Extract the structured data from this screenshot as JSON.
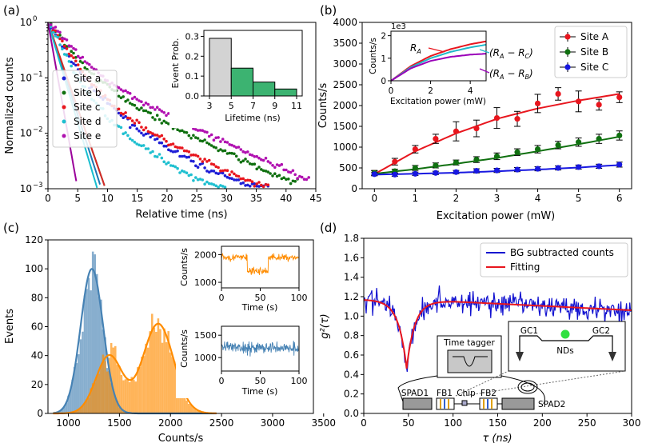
{
  "panel_labels": [
    "(a)",
    "(b)",
    "(c)",
    "(d)"
  ],
  "chart_data": [
    {
      "id": "a",
      "type": "scatter",
      "xlabel": "Relative time (ns)",
      "ylabel": "Normalized counts",
      "xlim": [
        0,
        45
      ],
      "ylim": [
        0.001,
        1
      ],
      "yscale": "log",
      "x_ticks": [
        0,
        5,
        10,
        15,
        20,
        25,
        30,
        35,
        40,
        45
      ],
      "y_ticks": [
        0.001,
        0.01,
        0.1,
        1
      ],
      "y_tick_labels": [
        "10",
        "10",
        "10",
        "10"
      ],
      "y_tick_exponents": [
        "−3",
        "−2",
        "−1",
        "0"
      ],
      "legend_position": "center-left",
      "series": [
        {
          "name": "Site a",
          "color": "#1f1fd6",
          "data_end": 37,
          "points": [
            [
              0,
              1
            ],
            [
              2,
              0.45
            ],
            [
              4,
              0.2
            ],
            [
              6,
              0.1
            ],
            [
              8,
              0.055
            ],
            [
              10,
              0.035
            ],
            [
              15,
              0.012
            ],
            [
              20,
              0.0055
            ],
            [
              25,
              0.0028
            ],
            [
              30,
              0.0016
            ],
            [
              35,
              0.0011
            ]
          ],
          "fit_color": "#1f77b4",
          "fit_tau": 1.3
        },
        {
          "name": "Site b",
          "color": "#107010",
          "data_end": 42,
          "points": [
            [
              0,
              1
            ],
            [
              2,
              0.55
            ],
            [
              4,
              0.3
            ],
            [
              6,
              0.17
            ],
            [
              8,
              0.1
            ],
            [
              10,
              0.07
            ],
            [
              15,
              0.03
            ],
            [
              20,
              0.015
            ],
            [
              25,
              0.008
            ],
            [
              30,
              0.0045
            ],
            [
              35,
              0.0025
            ],
            [
              40,
              0.0014
            ]
          ],
          "fit_color": "#2ca02c",
          "fit_tau": 1.4
        },
        {
          "name": "Site c",
          "color": "#e8161e",
          "data_end": 37,
          "points": [
            [
              0,
              1
            ],
            [
              2,
              0.5
            ],
            [
              4,
              0.25
            ],
            [
              6,
              0.12
            ],
            [
              8,
              0.065
            ],
            [
              10,
              0.04
            ],
            [
              15,
              0.015
            ],
            [
              20,
              0.007
            ],
            [
              25,
              0.0037
            ],
            [
              30,
              0.002
            ],
            [
              35,
              0.0012
            ]
          ],
          "fit_color": "#d62728",
          "fit_tau": 1.4
        },
        {
          "name": "Site d",
          "color": "#20c0d0",
          "data_end": 30,
          "points": [
            [
              0,
              1
            ],
            [
              2,
              0.4
            ],
            [
              4,
              0.15
            ],
            [
              6,
              0.07
            ],
            [
              8,
              0.035
            ],
            [
              10,
              0.02
            ],
            [
              15,
              0.0065
            ],
            [
              20,
              0.003
            ],
            [
              25,
              0.0015
            ],
            [
              29,
              0.0011
            ]
          ],
          "fit_color": "#17becf",
          "fit_tau": 1.2
        },
        {
          "name": "Site e",
          "color": "#b010b0",
          "data_end": 44,
          "points": [
            [
              0,
              1
            ],
            [
              2,
              0.6
            ],
            [
              4,
              0.35
            ],
            [
              6,
              0.2
            ],
            [
              8,
              0.13
            ],
            [
              10,
              0.09
            ],
            [
              15,
              0.042
            ],
            [
              20,
              0.022
            ],
            [
              25,
              0.012
            ],
            [
              30,
              0.0068
            ],
            [
              35,
              0.0038
            ],
            [
              40,
              0.0022
            ],
            [
              44,
              0.0014
            ]
          ],
          "fit_color": "#9a009a",
          "fit_tau": 0.72
        }
      ],
      "inset": {
        "type": "bar",
        "xlabel": "Lifetime (ns)",
        "ylabel": "Event Prob.",
        "x_ticks": [
          3,
          5,
          7,
          9,
          11
        ],
        "y_ticks": [
          0,
          0.1,
          0.2,
          0.3
        ],
        "y_tick_labels": [
          "0.0",
          "0.1",
          "0.2",
          "0.3"
        ],
        "ylim": [
          0,
          0.33
        ],
        "bins": [
          [
            3,
            5
          ],
          [
            5,
            7
          ],
          [
            7,
            9
          ],
          [
            9,
            11
          ]
        ],
        "values": [
          0.29,
          0.14,
          0.07,
          0.035
        ],
        "colors": [
          "#d3d3d3",
          "#3cb371",
          "#3cb371",
          "#3cb371"
        ]
      }
    },
    {
      "id": "b",
      "type": "scatter",
      "xlabel": "Excitation power (mW)",
      "ylabel": "Counts/s",
      "xlim": [
        -0.3,
        6.3
      ],
      "ylim": [
        0,
        4000
      ],
      "x_ticks": [
        0,
        1,
        2,
        3,
        4,
        5,
        6
      ],
      "y_ticks": [
        0,
        500,
        1000,
        1500,
        2000,
        2500,
        3000,
        3500,
        4000
      ],
      "legend_position": "upper-right",
      "series": [
        {
          "name": "Site A",
          "color": "#e8161e",
          "x": [
            0,
            0.5,
            1,
            1.5,
            2,
            2.5,
            3,
            3.5,
            4,
            4.5,
            5,
            5.5,
            6
          ],
          "y": [
            380,
            650,
            950,
            1200,
            1380,
            1450,
            1700,
            1680,
            2050,
            2280,
            2100,
            2020,
            2200
          ],
          "err": [
            60,
            80,
            90,
            110,
            230,
            200,
            250,
            180,
            220,
            150,
            250,
            130,
            130
          ],
          "fit": [
            [
              0,
              350
            ],
            [
              1,
              900
            ],
            [
              2,
              1330
            ],
            [
              3,
              1680
            ],
            [
              4,
              1930
            ],
            [
              5,
              2120
            ],
            [
              6,
              2280
            ]
          ]
        },
        {
          "name": "Site B",
          "color": "#107010",
          "x": [
            0,
            0.5,
            1,
            1.5,
            2,
            2.5,
            3,
            3.5,
            4,
            4.5,
            5,
            5.5,
            6
          ],
          "y": [
            380,
            420,
            500,
            560,
            630,
            700,
            780,
            880,
            950,
            1050,
            1120,
            1200,
            1280
          ],
          "err": [
            50,
            50,
            60,
            60,
            60,
            70,
            80,
            80,
            90,
            90,
            100,
            110,
            110
          ],
          "fit": [
            [
              0,
              360
            ],
            [
              1,
              470
            ],
            [
              2,
              600
            ],
            [
              3,
              740
            ],
            [
              4,
              900
            ],
            [
              5,
              1070
            ],
            [
              6,
              1250
            ]
          ]
        },
        {
          "name": "Site C",
          "color": "#1818e0",
          "x": [
            0,
            0.5,
            1,
            1.5,
            2,
            2.5,
            3,
            3.5,
            4,
            4.5,
            5,
            5.5,
            6
          ],
          "y": [
            350,
            340,
            360,
            380,
            400,
            430,
            440,
            460,
            480,
            500,
            520,
            540,
            580
          ],
          "err": [
            40,
            40,
            40,
            40,
            40,
            50,
            50,
            50,
            50,
            50,
            50,
            50,
            60
          ],
          "fit": [
            [
              0,
              340
            ],
            [
              1,
              360
            ],
            [
              2,
              385
            ],
            [
              3,
              420
            ],
            [
              4,
              460
            ],
            [
              5,
              510
            ],
            [
              6,
              570
            ]
          ]
        }
      ],
      "inset": {
        "type": "line",
        "xlabel": "Excitation power (mW)",
        "ylabel": "Counts/s",
        "y_multiplier": "1e3",
        "x_ticks": [
          0,
          2,
          4
        ],
        "y_ticks": [
          0,
          1,
          2
        ],
        "xlim": [
          0,
          4.8
        ],
        "ylim": [
          0,
          2.2
        ],
        "labels": [
          "R",
          "(R",
          "(R"
        ],
        "label_subscripts": [
          "A",
          "A",
          "A"
        ],
        "label_suffixes": [
          "",
          " − R",
          " − R"
        ],
        "label_suffix_subscripts": [
          "",
          "C",
          "B"
        ],
        "label_closers": [
          "",
          ")",
          ")"
        ],
        "lines": [
          {
            "label_index": 0,
            "color": "#e8161e",
            "points": [
              [
                0,
                0
              ],
              [
                1,
                0.65
              ],
              [
                2,
                1.1
              ],
              [
                3,
                1.4
              ],
              [
                4,
                1.62
              ],
              [
                4.8,
                1.75
              ]
            ]
          },
          {
            "label_index": 1,
            "color": "#20b8c8",
            "points": [
              [
                0,
                0
              ],
              [
                1,
                0.6
              ],
              [
                2,
                1.0
              ],
              [
                3,
                1.28
              ],
              [
                4,
                1.48
              ],
              [
                4.8,
                1.6
              ]
            ]
          },
          {
            "label_index": 2,
            "color": "#9a00b8",
            "points": [
              [
                0,
                0
              ],
              [
                1,
                0.55
              ],
              [
                2,
                0.88
              ],
              [
                3,
                1.06
              ],
              [
                4,
                1.16
              ],
              [
                4.8,
                1.2
              ]
            ]
          }
        ]
      }
    },
    {
      "id": "c",
      "type": "bar",
      "xlabel": "Counts/s",
      "ylabel": "Events",
      "xlim": [
        800,
        3400
      ],
      "ylim": [
        0,
        120
      ],
      "x_ticks": [
        1000,
        1500,
        2000,
        2500,
        3000,
        3500
      ],
      "y_ticks": [
        0,
        20,
        40,
        60,
        80,
        100,
        120
      ],
      "series": [
        {
          "name": "",
          "color": "#4682b4",
          "fit_peaks": [
            [
              1230,
              100,
              110
            ]
          ]
        },
        {
          "name": "",
          "color": "#ff8c00",
          "fit_peaks": [
            [
              1400,
              40,
              130
            ],
            [
              1880,
              62,
              150
            ]
          ]
        }
      ],
      "insets": [
        {
          "xlabel": "Time (s)",
          "ylabel": "Counts/s",
          "x_ticks": [
            0,
            50,
            100
          ],
          "y_ticks": [
            1000,
            2000
          ],
          "xlim": [
            0,
            100
          ],
          "ylim": [
            800,
            2300
          ],
          "color": "#ff8c00",
          "levels": [
            [
              0,
              33,
              1900
            ],
            [
              33,
              60,
              1400
            ],
            [
              60,
              100,
              1900
            ]
          ]
        },
        {
          "xlabel": "Time (s)",
          "ylabel": "Counts/s",
          "x_ticks": [
            0,
            50,
            100
          ],
          "y_ticks": [
            1000,
            1500
          ],
          "xlim": [
            0,
            100
          ],
          "ylim": [
            700,
            1700
          ],
          "color": "#4682b4",
          "levels": [
            [
              0,
              100,
              1220
            ]
          ]
        }
      ]
    },
    {
      "id": "d",
      "type": "line",
      "xlabel": "τ (ns)",
      "ylabel": "g²(τ)",
      "xlim": [
        0,
        300
      ],
      "ylim": [
        0,
        1.8
      ],
      "x_ticks": [
        0,
        50,
        100,
        150,
        200,
        250,
        300
      ],
      "y_ticks": [
        0,
        0.2,
        0.4,
        0.6,
        0.8,
        1.0,
        1.2,
        1.4,
        1.6,
        1.8
      ],
      "y_tick_labels": [
        "0.0",
        "0.2",
        "0.4",
        "0.6",
        "0.8",
        "1.0",
        "1.2",
        "1.4",
        "1.6",
        "1.8"
      ],
      "legend_position": "upper-right",
      "series": [
        {
          "name": "BG subtracted counts",
          "color": "#1010d0",
          "noise": 0.2
        },
        {
          "name": "Fitting",
          "color": "#e8161e",
          "dip_center": 48,
          "dip_depth": 0.7,
          "dip_width": 9,
          "baseline": [
            [
              0,
              1.17
            ],
            [
              100,
              1.15
            ],
            [
              300,
              1.06
            ]
          ]
        }
      ],
      "schematic_labels": {
        "time_tagger": "Time tagger",
        "gc1": "GC1",
        "gc2": "GC2",
        "nds": "NDs",
        "spad1": "SPAD1",
        "fb1": "FB1",
        "chip": "Chip",
        "fb2": "FB2",
        "spad2": "SPAD2"
      }
    }
  ]
}
